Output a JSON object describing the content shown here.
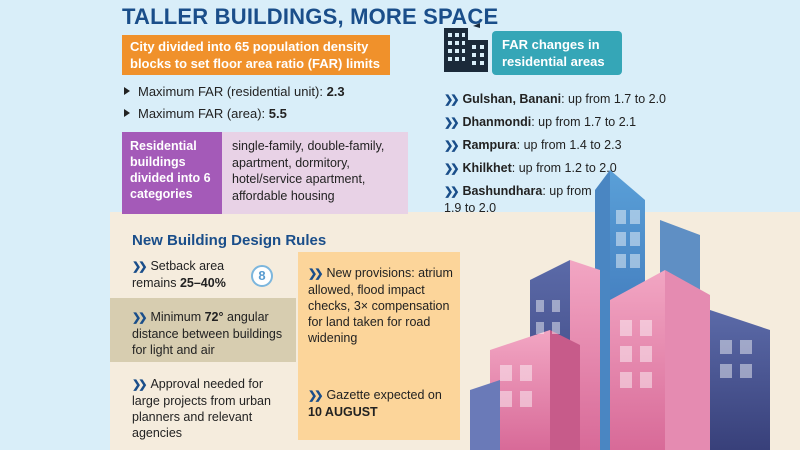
{
  "title": "TALLER BUILDINGS, MORE SPACE",
  "density_note": "City divided into 65 population density blocks to set floor area ratio (FAR) limits",
  "far_limits": [
    {
      "label": "Maximum FAR (residential unit): ",
      "value": "2.3"
    },
    {
      "label": "Maximum FAR (area): ",
      "value": "5.5"
    }
  ],
  "residential": {
    "label": "Residential buildings divided into 6 categories",
    "categories": "single-family, double-family, apartment, dormitory, hotel/service apartment, affordable housing"
  },
  "far_changes": {
    "heading": "FAR changes in residential areas",
    "items": [
      {
        "area": "Gulshan, Banani",
        "text": ": up from 1.7 to 2.0"
      },
      {
        "area": "Dhanmondi",
        "text": ": up from 1.7 to 2.1"
      },
      {
        "area": "Rampura",
        "text": ": up from 1.4 to 2.3"
      },
      {
        "area": "Khilkhet",
        "text": ": up from 1.2 to 2.0"
      },
      {
        "area": "Bashundhara",
        "text": ": up from 1.9 to 2.0"
      }
    ]
  },
  "design_rules": {
    "heading": "New Building Design Rules",
    "setback": {
      "pre": "Setback area remains ",
      "value": "25–40%"
    },
    "angular": {
      "pre": "Minimum ",
      "value": "72°",
      "post": " angular distance between buildings for light and air"
    },
    "approval": "Approval needed for large projects from urban planners and relevant agencies",
    "provisions": "New provisions: atrium allowed, flood impact checks, 3× compensation for land taken for road widening",
    "gazette": {
      "pre": "Gazette expected on ",
      "value": "10 AUGUST"
    }
  },
  "logo_letter": "8",
  "colors": {
    "title": "#1a4e8a",
    "orange": "#f0912b",
    "purple": "#a45ab8",
    "teal": "#35a6b7",
    "yellow": "#fcd59a"
  },
  "icons": [
    "building-icon",
    "chevron-icon",
    "triangle-bullet-icon"
  ]
}
